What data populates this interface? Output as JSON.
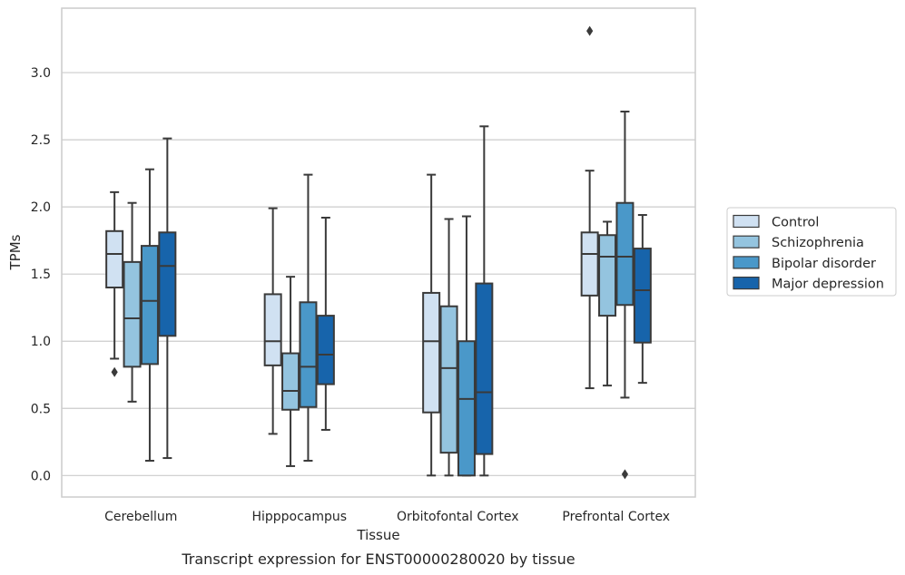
{
  "chart_data": {
    "type": "boxplot",
    "caption": "Transcript expression for ENST00000280020 by tissue",
    "xlabel": "Tissue",
    "ylabel": "TPMs",
    "ylim": [
      -0.16,
      3.48
    ],
    "yticks": [
      0.0,
      0.5,
      1.0,
      1.5,
      2.0,
      2.5,
      3.0
    ],
    "ytick_labels": [
      "0.0",
      "0.5",
      "1.0",
      "1.5",
      "2.0",
      "2.5",
      "3.0"
    ],
    "grid": "horizontal",
    "legend_position": "right",
    "categories": [
      "Cerebellum",
      "Hipppocampus",
      "Orbitofontal Cortex",
      "Prefrontal Cortex"
    ],
    "series": [
      {
        "name": "Control",
        "color": "#d0e1f2",
        "boxes": [
          {
            "whislo": 0.87,
            "q1": 1.4,
            "med": 1.65,
            "q3": 1.82,
            "whishi": 2.11,
            "fliers": [
              0.77
            ]
          },
          {
            "whislo": 0.31,
            "q1": 0.82,
            "med": 1.0,
            "q3": 1.35,
            "whishi": 1.99,
            "fliers": []
          },
          {
            "whislo": 0.0,
            "q1": 0.47,
            "med": 1.0,
            "q3": 1.36,
            "whishi": 2.24,
            "fliers": []
          },
          {
            "whislo": 0.65,
            "q1": 1.34,
            "med": 1.65,
            "q3": 1.81,
            "whishi": 2.27,
            "fliers": [
              3.31
            ]
          }
        ]
      },
      {
        "name": "Schizophrenia",
        "color": "#94c4df",
        "boxes": [
          {
            "whislo": 0.55,
            "q1": 0.81,
            "med": 1.17,
            "q3": 1.59,
            "whishi": 2.03,
            "fliers": []
          },
          {
            "whislo": 0.07,
            "q1": 0.49,
            "med": 0.63,
            "q3": 0.91,
            "whishi": 1.48,
            "fliers": []
          },
          {
            "whislo": 0.0,
            "q1": 0.17,
            "med": 0.8,
            "q3": 1.26,
            "whishi": 1.91,
            "fliers": []
          },
          {
            "whislo": 0.67,
            "q1": 1.19,
            "med": 1.63,
            "q3": 1.79,
            "whishi": 1.89,
            "fliers": []
          }
        ]
      },
      {
        "name": "Bipolar disorder",
        "color": "#4a98c9",
        "boxes": [
          {
            "whislo": 0.11,
            "q1": 0.83,
            "med": 1.3,
            "q3": 1.71,
            "whishi": 2.28,
            "fliers": []
          },
          {
            "whislo": 0.11,
            "q1": 0.51,
            "med": 0.81,
            "q3": 1.29,
            "whishi": 2.24,
            "fliers": []
          },
          {
            "whislo": 0.0,
            "q1": 0.0,
            "med": 0.57,
            "q3": 1.0,
            "whishi": 1.93,
            "fliers": []
          },
          {
            "whislo": 0.58,
            "q1": 1.27,
            "med": 1.63,
            "q3": 2.03,
            "whishi": 2.71,
            "fliers": [
              0.01
            ]
          }
        ]
      },
      {
        "name": "Major depression",
        "color": "#1764ab",
        "boxes": [
          {
            "whislo": 0.13,
            "q1": 1.04,
            "med": 1.56,
            "q3": 1.81,
            "whishi": 2.51,
            "fliers": []
          },
          {
            "whislo": 0.34,
            "q1": 0.68,
            "med": 0.9,
            "q3": 1.19,
            "whishi": 1.92,
            "fliers": []
          },
          {
            "whislo": 0.0,
            "q1": 0.16,
            "med": 0.62,
            "q3": 1.43,
            "whishi": 2.6,
            "fliers": []
          },
          {
            "whislo": 0.69,
            "q1": 0.99,
            "med": 1.38,
            "q3": 1.69,
            "whishi": 1.94,
            "fliers": []
          }
        ]
      }
    ]
  }
}
